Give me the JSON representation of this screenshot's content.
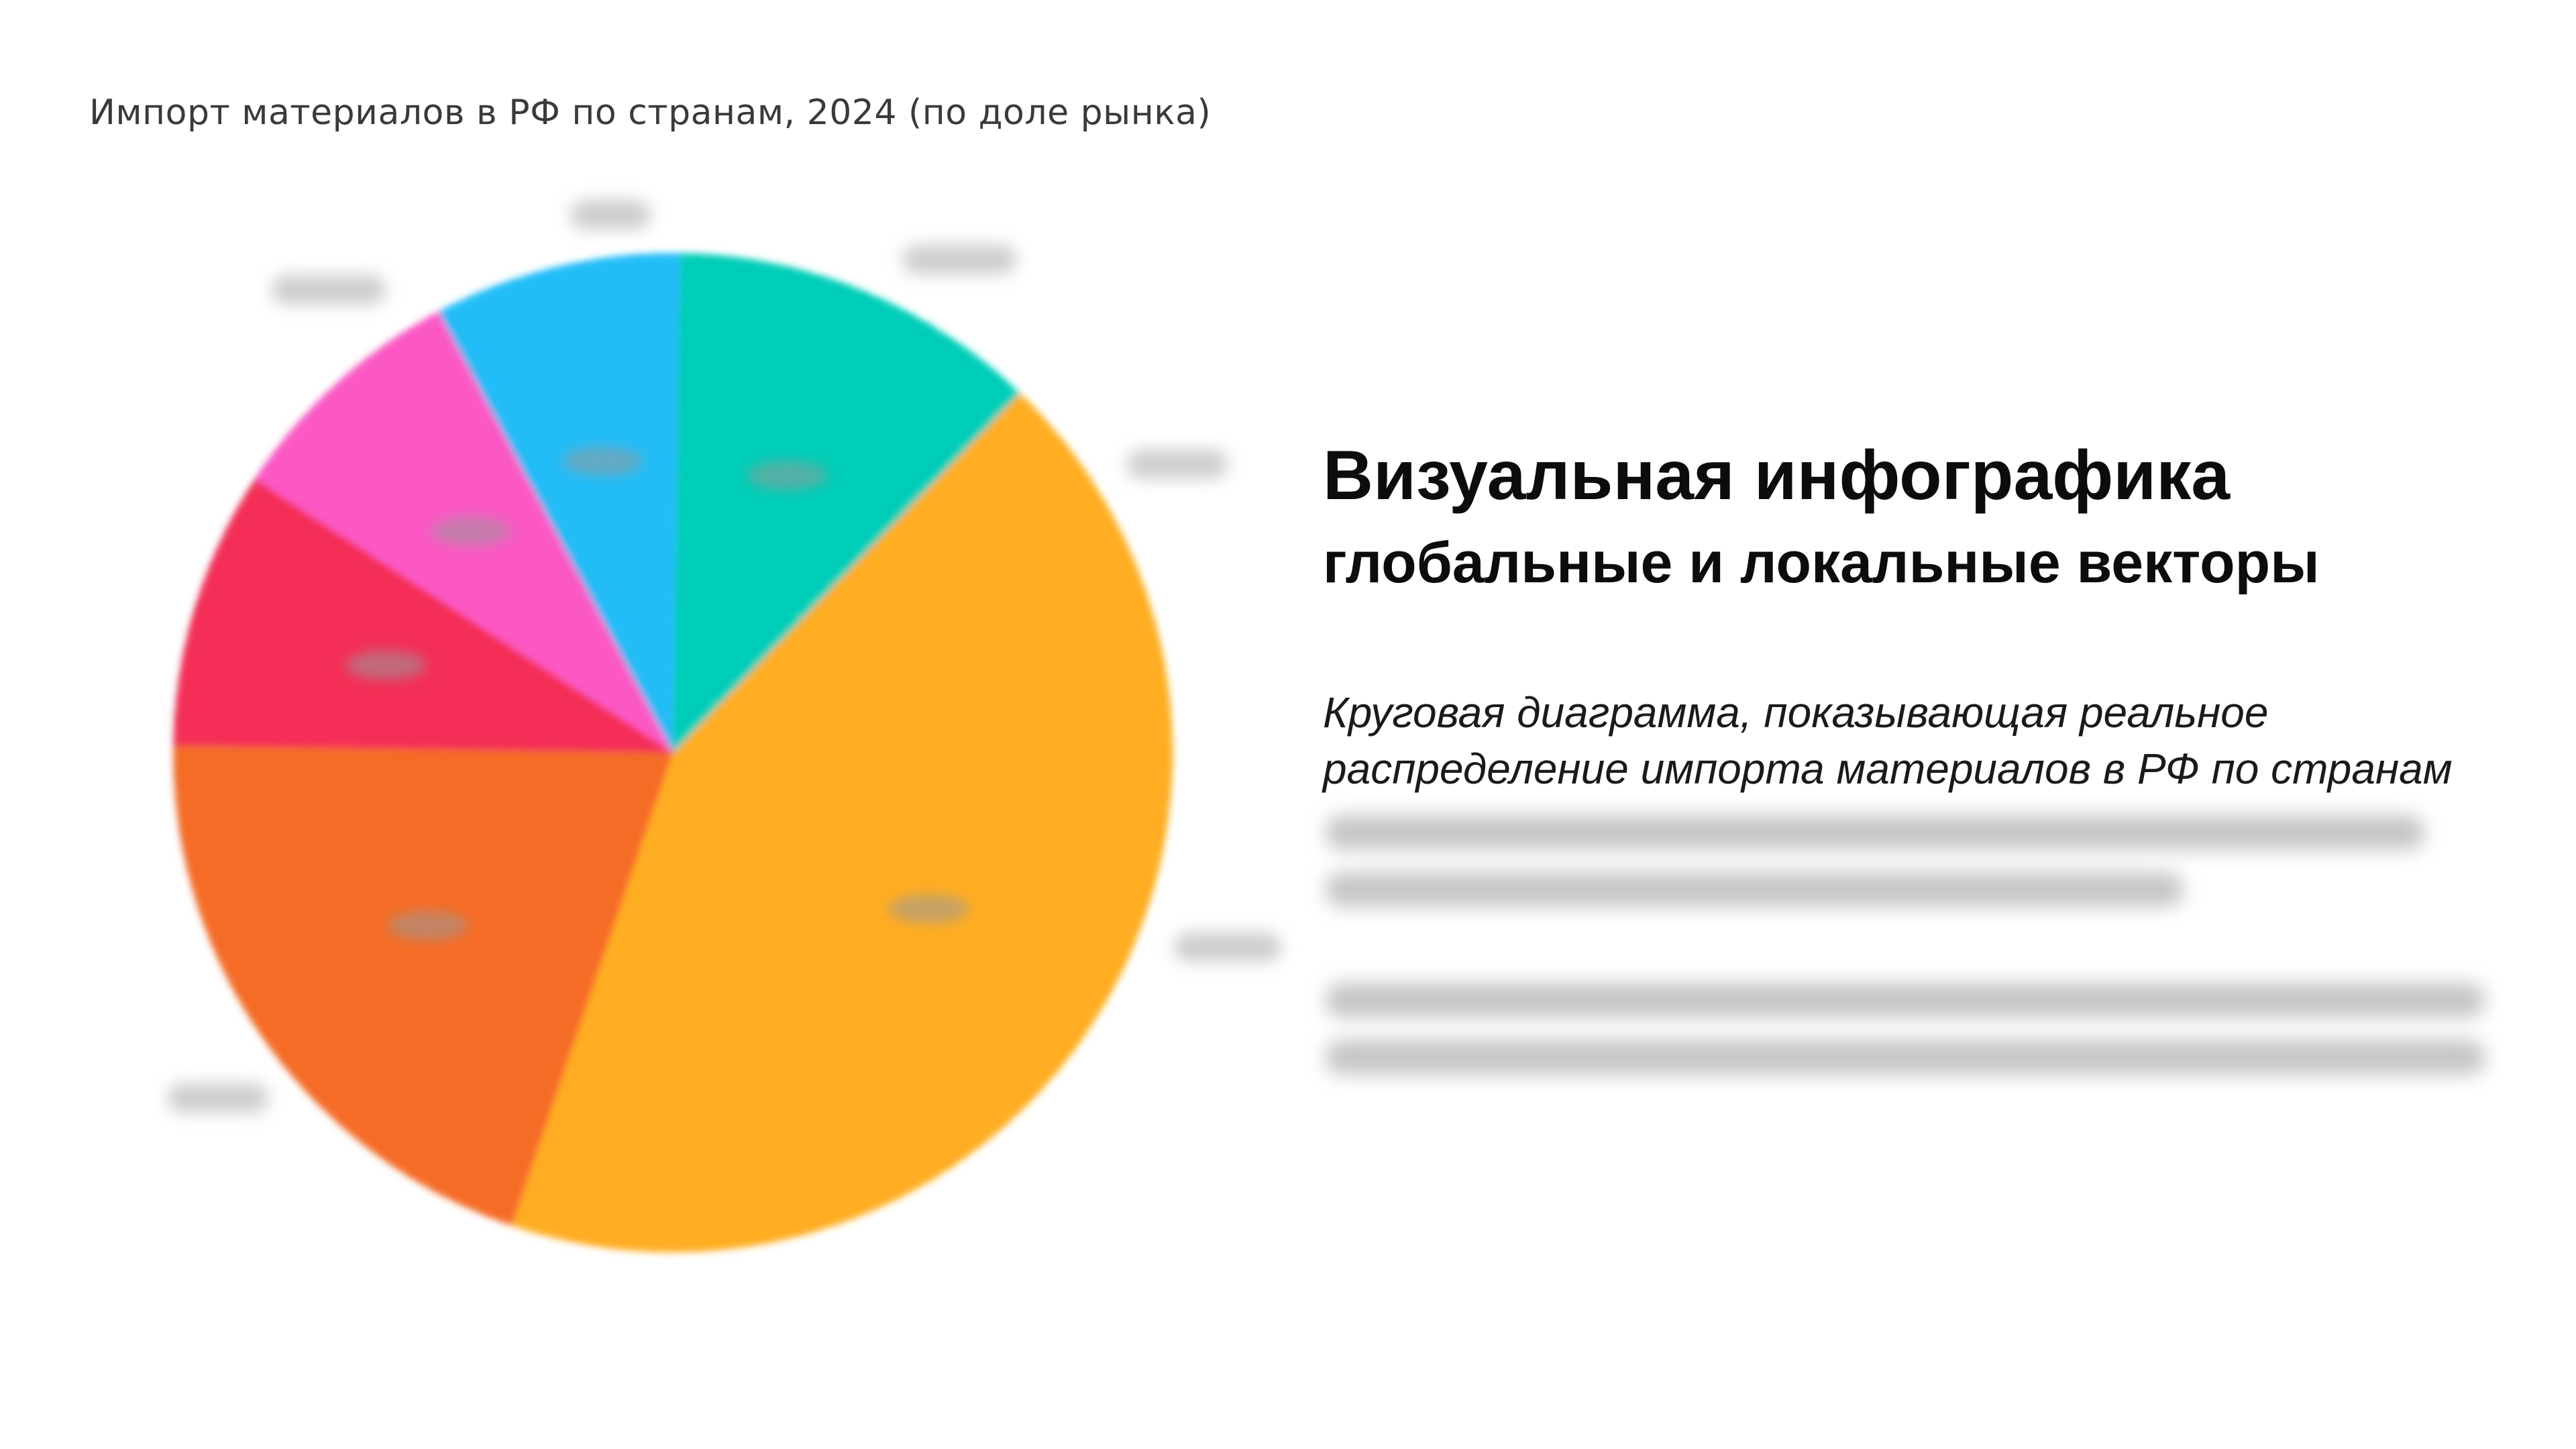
{
  "page": {
    "headline_line1": "Визуальная инфографика",
    "headline_line2": "глобальные и локальные векторы",
    "subtitle": "Круговая диаграмма, показывающая реальное распределение импорта материалов в РФ по странам"
  },
  "chart_data": {
    "type": "pie",
    "title": "Импорт материалов в РФ по странам, 2024 (по доле рынка)",
    "slices": [
      {
        "value": 43,
        "color": "#FFAD20"
      },
      {
        "value": 20,
        "color": "#F56C28"
      },
      {
        "value": 9,
        "color": "#F42D57"
      },
      {
        "value": 8,
        "color": "#FB59C4"
      },
      {
        "value": 8,
        "color": "#21BDF7"
      },
      {
        "value": 12,
        "color": "#00CDB7"
      }
    ],
    "start_angle_deg": -46,
    "legend": "none",
    "labels_visible": false
  }
}
